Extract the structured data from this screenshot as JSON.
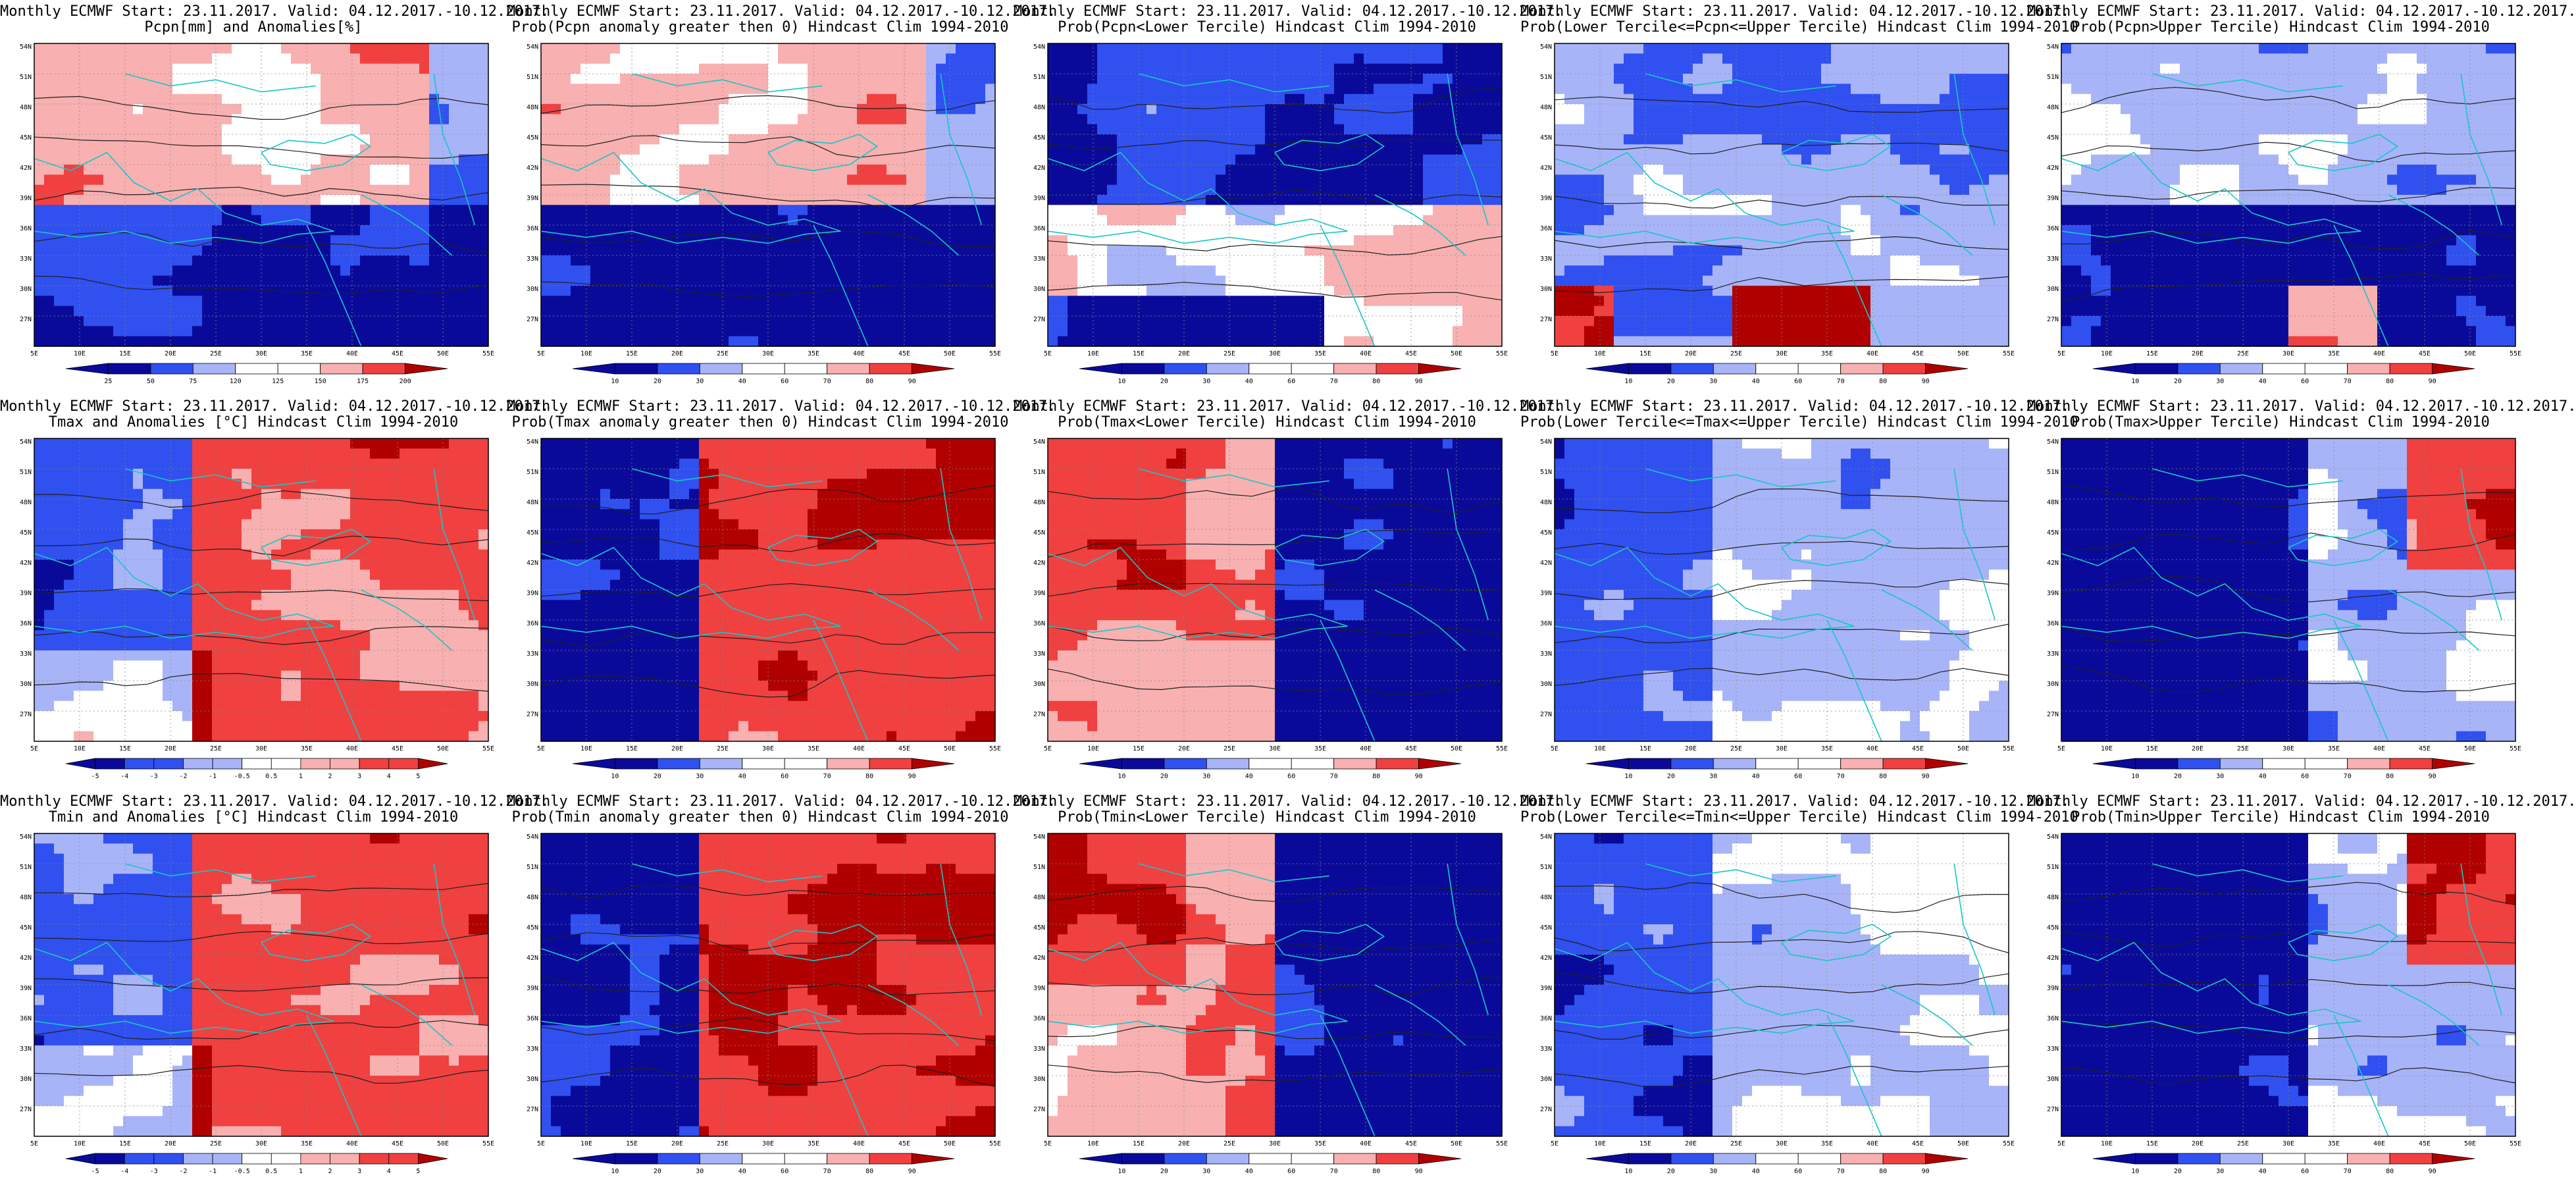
{
  "figure": {
    "header_line": "Monthly ECMWF Start: 23.11.2017. Valid: 04.12.2017.-10.12.2017.",
    "lat_labels": [
      "54N",
      "51N",
      "48N",
      "45N",
      "42N",
      "39N",
      "36N",
      "33N",
      "30N",
      "27N"
    ],
    "lon_labels": [
      "5E",
      "10E",
      "15E",
      "20E",
      "25E",
      "30E",
      "35E",
      "40E",
      "45E",
      "50E",
      "55E"
    ],
    "colors": {
      "coast": "#19c6c6",
      "contour": "#202020",
      "blue_dark": "#0a0a9a",
      "blue_mid": "#3050f0",
      "blue_light": "#a8b4f8",
      "white": "#ffffff",
      "red_light": "#f8b0b0",
      "red_mid": "#f04040",
      "red_dark": "#b00000"
    },
    "panels": [
      {
        "subtitle": "Pcpn[mm] and Anomalies[%]",
        "legend": [
          "25",
          "50",
          "75",
          "120",
          "125",
          "150",
          "175",
          "200"
        ],
        "pattern": "pcpn_anom"
      },
      {
        "subtitle": "Prob(Pcpn anomaly greater then 0) Hindcast Clim 1994-2010",
        "legend": [
          "10",
          "20",
          "30",
          "40",
          "60",
          "70",
          "80",
          "90"
        ],
        "pattern": "pcpn_p0"
      },
      {
        "subtitle": "Prob(Pcpn<Lower Tercile) Hindcast Clim 1994-2010",
        "legend": [
          "10",
          "20",
          "30",
          "40",
          "60",
          "70",
          "80",
          "90"
        ],
        "pattern": "pcpn_low"
      },
      {
        "subtitle": "Prob(Lower Tercile<=Pcpn<=Upper Tercile) Hindcast Clim 1994-2010",
        "legend": [
          "10",
          "20",
          "30",
          "40",
          "60",
          "70",
          "80",
          "90"
        ],
        "pattern": "pcpn_mid"
      },
      {
        "subtitle": "Prob(Pcpn>Upper Tercile) Hindcast Clim 1994-2010",
        "legend": [
          "10",
          "20",
          "30",
          "40",
          "60",
          "70",
          "80",
          "90"
        ],
        "pattern": "pcpn_up"
      },
      {
        "subtitle": "Tmax and Anomalies [°C] Hindcast Clim 1994-2010",
        "legend": [
          "-5",
          "-4",
          "-3",
          "-2",
          "-1",
          "-0.5",
          "0.5",
          "1",
          "2",
          "3",
          "4",
          "5"
        ],
        "pattern": "t_anom"
      },
      {
        "subtitle": "Prob(Tmax anomaly greater then 0) Hindcast Clim 1994-2010",
        "legend": [
          "10",
          "20",
          "30",
          "40",
          "60",
          "70",
          "80",
          "90"
        ],
        "pattern": "t_p0"
      },
      {
        "subtitle": "Prob(Tmax<Lower Tercile) Hindcast Clim 1994-2010",
        "legend": [
          "10",
          "20",
          "30",
          "40",
          "60",
          "70",
          "80",
          "90"
        ],
        "pattern": "t_low"
      },
      {
        "subtitle": "Prob(Lower Tercile<=Tmax<=Upper Tercile) Hindcast Clim 1994-2010",
        "legend": [
          "10",
          "20",
          "30",
          "40",
          "60",
          "70",
          "80",
          "90"
        ],
        "pattern": "t_mid"
      },
      {
        "subtitle": "Prob(Tmax>Upper Tercile) Hindcast Clim 1994-2010",
        "legend": [
          "10",
          "20",
          "30",
          "40",
          "60",
          "70",
          "80",
          "90"
        ],
        "pattern": "t_up"
      },
      {
        "subtitle": "Tmin and Anomalies [°C] Hindcast Clim 1994-2010",
        "legend": [
          "-5",
          "-4",
          "-3",
          "-2",
          "-1",
          "-0.5",
          "0.5",
          "1",
          "2",
          "3",
          "4",
          "5"
        ],
        "pattern": "t_anom"
      },
      {
        "subtitle": "Prob(Tmin anomaly greater then 0) Hindcast Clim 1994-2010",
        "legend": [
          "10",
          "20",
          "30",
          "40",
          "60",
          "70",
          "80",
          "90"
        ],
        "pattern": "t_p0"
      },
      {
        "subtitle": "Prob(Tmin<Lower Tercile) Hindcast Clim 1994-2010",
        "legend": [
          "10",
          "20",
          "30",
          "40",
          "60",
          "70",
          "80",
          "90"
        ],
        "pattern": "t_low"
      },
      {
        "subtitle": "Prob(Lower Tercile<=Tmin<=Upper Tercile) Hindcast Clim 1994-2010",
        "legend": [
          "10",
          "20",
          "30",
          "40",
          "60",
          "70",
          "80",
          "90"
        ],
        "pattern": "t_mid"
      },
      {
        "subtitle": "Prob(Tmin>Upper Tercile) Hindcast Clim 1994-2010",
        "legend": [
          "10",
          "20",
          "30",
          "40",
          "60",
          "70",
          "80",
          "90"
        ],
        "pattern": "t_up"
      }
    ]
  }
}
